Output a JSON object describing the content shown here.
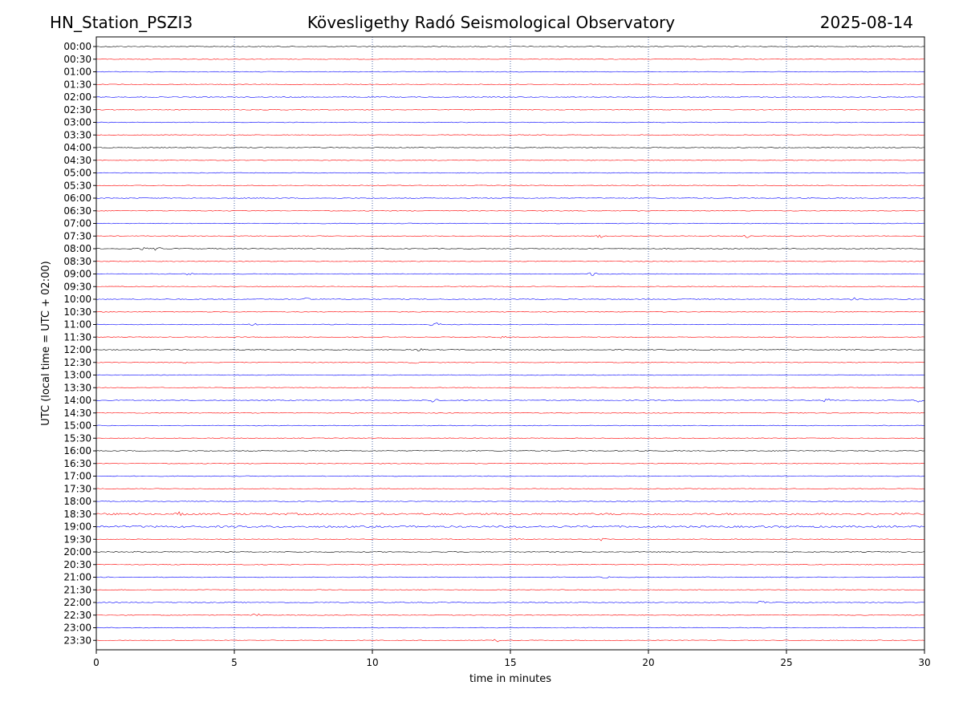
{
  "header": {
    "station": "HN_Station_PSZI3",
    "observatory": "Kövesligethy Radó Seismological Observatory",
    "date": "2025-08-14"
  },
  "chart_data": {
    "type": "line",
    "title": "Kövesligethy Radó Seismological Observatory",
    "xlabel": "time in minutes",
    "ylabel": "UTC (local time = UTC + 02:00)",
    "xlim": [
      0,
      30
    ],
    "x_ticks": [
      "0",
      "5",
      "10",
      "15",
      "20",
      "25",
      "30"
    ],
    "grid": "vertical dotted lines at each x tick",
    "trace_colors": [
      "#000000",
      "#ff0000",
      "#0000ff"
    ],
    "rows": [
      {
        "label": "00:00",
        "color": "#000000"
      },
      {
        "label": "00:30",
        "color": "#ff0000"
      },
      {
        "label": "01:00",
        "color": "#0000ff"
      },
      {
        "label": "01:30",
        "color": "#ff0000"
      },
      {
        "label": "02:00",
        "color": "#0000ff"
      },
      {
        "label": "02:30",
        "color": "#ff0000"
      },
      {
        "label": "03:00",
        "color": "#0000ff"
      },
      {
        "label": "03:30",
        "color": "#ff0000"
      },
      {
        "label": "04:00",
        "color": "#000000"
      },
      {
        "label": "04:30",
        "color": "#ff0000"
      },
      {
        "label": "05:00",
        "color": "#0000ff"
      },
      {
        "label": "05:30",
        "color": "#ff0000"
      },
      {
        "label": "06:00",
        "color": "#0000ff"
      },
      {
        "label": "06:30",
        "color": "#ff0000"
      },
      {
        "label": "07:00",
        "color": "#0000ff"
      },
      {
        "label": "07:30",
        "color": "#ff0000"
      },
      {
        "label": "08:00",
        "color": "#000000"
      },
      {
        "label": "08:30",
        "color": "#ff0000"
      },
      {
        "label": "09:00",
        "color": "#0000ff"
      },
      {
        "label": "09:30",
        "color": "#ff0000"
      },
      {
        "label": "10:00",
        "color": "#0000ff"
      },
      {
        "label": "10:30",
        "color": "#ff0000"
      },
      {
        "label": "11:00",
        "color": "#0000ff"
      },
      {
        "label": "11:30",
        "color": "#ff0000"
      },
      {
        "label": "12:00",
        "color": "#000000"
      },
      {
        "label": "12:30",
        "color": "#ff0000"
      },
      {
        "label": "13:00",
        "color": "#0000ff"
      },
      {
        "label": "13:30",
        "color": "#ff0000"
      },
      {
        "label": "14:00",
        "color": "#0000ff"
      },
      {
        "label": "14:30",
        "color": "#ff0000"
      },
      {
        "label": "15:00",
        "color": "#0000ff"
      },
      {
        "label": "15:30",
        "color": "#ff0000"
      },
      {
        "label": "16:00",
        "color": "#000000"
      },
      {
        "label": "16:30",
        "color": "#ff0000"
      },
      {
        "label": "17:00",
        "color": "#0000ff"
      },
      {
        "label": "17:30",
        "color": "#ff0000"
      },
      {
        "label": "18:00",
        "color": "#0000ff"
      },
      {
        "label": "18:30",
        "color": "#ff0000"
      },
      {
        "label": "19:00",
        "color": "#0000ff"
      },
      {
        "label": "19:30",
        "color": "#ff0000"
      },
      {
        "label": "20:00",
        "color": "#000000"
      },
      {
        "label": "20:30",
        "color": "#ff0000"
      },
      {
        "label": "21:00",
        "color": "#0000ff"
      },
      {
        "label": "21:30",
        "color": "#ff0000"
      },
      {
        "label": "22:00",
        "color": "#0000ff"
      },
      {
        "label": "22:30",
        "color": "#ff0000"
      },
      {
        "label": "23:00",
        "color": "#0000ff"
      },
      {
        "label": "23:30",
        "color": "#ff0000"
      }
    ],
    "events": [
      {
        "row": "07:30",
        "minute": 18.3,
        "amp": 3
      },
      {
        "row": "07:30",
        "minute": 23.6,
        "amp": 2
      },
      {
        "row": "08:00",
        "minute": 1.7,
        "amp": 3
      },
      {
        "row": "08:00",
        "minute": 2.2,
        "amp": 2.5
      },
      {
        "row": "09:00",
        "minute": 18.0,
        "amp": 4
      },
      {
        "row": "09:00",
        "minute": 3.4,
        "amp": 2
      },
      {
        "row": "10:00",
        "minute": 7.6,
        "amp": 3
      },
      {
        "row": "10:00",
        "minute": 27.4,
        "amp": 3
      },
      {
        "row": "11:00",
        "minute": 5.7,
        "amp": 2
      },
      {
        "row": "11:00",
        "minute": 12.3,
        "amp": 4
      },
      {
        "row": "11:30",
        "minute": 14.7,
        "amp": 2
      },
      {
        "row": "12:00",
        "minute": 11.7,
        "amp": 2
      },
      {
        "row": "12:30",
        "minute": 3.3,
        "amp": 2
      },
      {
        "row": "12:30",
        "minute": 11.5,
        "amp": 2
      },
      {
        "row": "14:00",
        "minute": 12.2,
        "amp": 3
      },
      {
        "row": "14:00",
        "minute": 26.5,
        "amp": 3
      },
      {
        "row": "14:00",
        "minute": 29.8,
        "amp": 3
      },
      {
        "row": "18:30",
        "minute": 3.0,
        "amp": 3
      },
      {
        "row": "18:30",
        "minute": 29.0,
        "amp": 3
      },
      {
        "row": "19:30",
        "minute": 15.3,
        "amp": 2
      },
      {
        "row": "19:30",
        "minute": 18.3,
        "amp": 2
      },
      {
        "row": "20:00",
        "minute": 1.5,
        "amp": 2
      },
      {
        "row": "21:00",
        "minute": 18.5,
        "amp": 1.5
      },
      {
        "row": "22:00",
        "minute": 24.1,
        "amp": 2
      },
      {
        "row": "22:30",
        "minute": 5.8,
        "amp": 2
      },
      {
        "row": "23:30",
        "minute": 14.5,
        "amp": 2
      }
    ]
  }
}
